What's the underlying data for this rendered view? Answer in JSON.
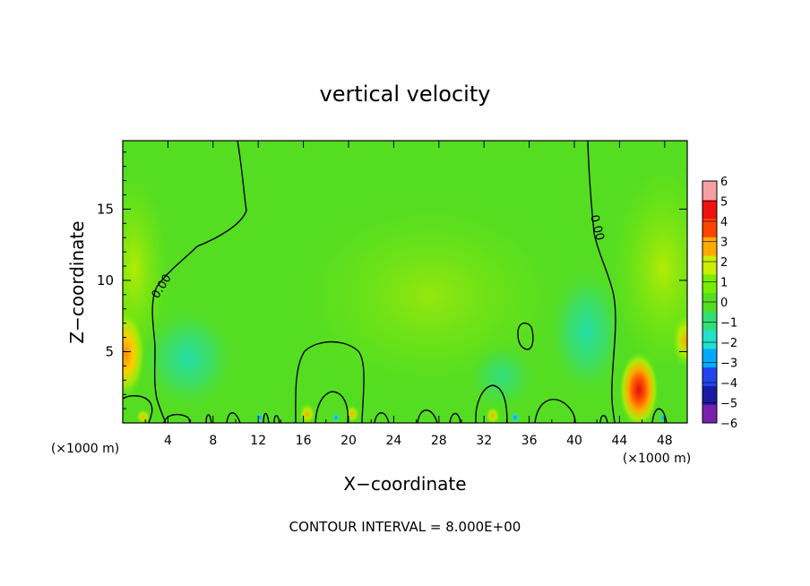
{
  "chart_data": {
    "type": "heatmap",
    "title": "vertical velocity",
    "xlabel": "X−coordinate",
    "ylabel": "Z−coordinate",
    "x_unit": "(×1000 m)",
    "footer": "CONTOUR INTERVAL = 8.000E+00",
    "xlim": [
      0,
      50
    ],
    "ylim": [
      0,
      19.8
    ],
    "x_ticks": [
      4,
      8,
      12,
      16,
      20,
      24,
      28,
      32,
      36,
      40,
      44,
      48
    ],
    "x_tick_labels": [
      "4",
      "8",
      "12",
      "16",
      "20",
      "24",
      "28",
      "32",
      "36",
      "40",
      "44",
      "48"
    ],
    "y_ticks": [
      5,
      10,
      15
    ],
    "y_tick_labels": [
      "5",
      "10",
      "15"
    ],
    "colorbar": {
      "levels": [
        -6,
        -5,
        -4,
        -3,
        -2,
        -1,
        0,
        1,
        2,
        3,
        4,
        5,
        6
      ],
      "labels": [
        "−6",
        "−5",
        "−4",
        "−3",
        "−2",
        "−1",
        "0",
        "1",
        "2",
        "3",
        "4",
        "5",
        "6"
      ],
      "colors": [
        "#7a1fb0",
        "#1a1aa0",
        "#2244ee",
        "#00aaff",
        "#22e0cc",
        "#33dd77",
        "#55dd22",
        "#77ee00",
        "#ccee00",
        "#ffaa00",
        "#ff4400",
        "#ee1111",
        "#f4a0a0"
      ]
    },
    "contour_labels": [
      {
        "text": "0.00"
      },
      {
        "text": "0.00"
      }
    ],
    "features": [
      {
        "type": "updraft",
        "x": 0.3,
        "z": 4.8,
        "value": 3
      },
      {
        "type": "updraft",
        "x": 45.5,
        "z": 2.3,
        "value": 5
      },
      {
        "type": "downdraft",
        "x": 5.5,
        "z": 4.2,
        "value": -1
      },
      {
        "type": "downdraft",
        "x": 40.5,
        "z": 6.5,
        "value": -1
      }
    ]
  }
}
